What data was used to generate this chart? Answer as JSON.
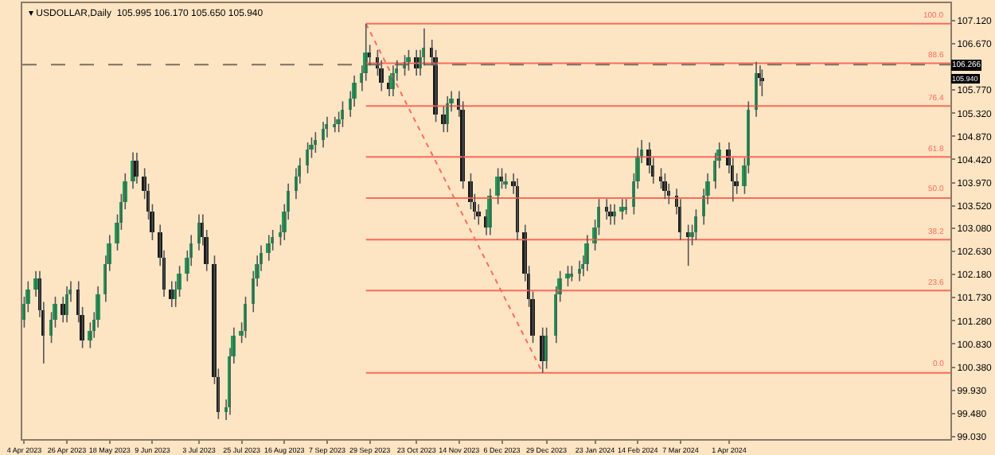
{
  "chart_data": {
    "type": "candlestick",
    "title": "▾ USDOLLAR,Daily  105.995 106.170 105.650 105.940",
    "x": [
      "2023-04-04",
      "2023-04-06",
      "2023-04-10",
      "2023-04-12",
      "2023-04-14",
      "2023-04-18",
      "2023-04-20",
      "2023-04-24",
      "2023-04-26",
      "2023-04-28",
      "2023-05-02",
      "2023-05-04",
      "2023-05-08",
      "2023-05-10",
      "2023-05-12",
      "2023-05-16",
      "2023-05-18",
      "2023-05-22",
      "2023-05-24",
      "2023-05-26",
      "2023-05-30",
      "2023-06-01",
      "2023-06-05",
      "2023-06-07",
      "2023-06-09",
      "2023-06-13",
      "2023-06-15",
      "2023-06-19",
      "2023-06-21",
      "2023-06-23",
      "2023-06-27",
      "2023-06-29",
      "2023-07-03",
      "2023-07-05",
      "2023-07-07",
      "2023-07-11",
      "2023-07-13",
      "2023-07-17",
      "2023-07-19",
      "2023-07-21",
      "2023-07-25",
      "2023-07-27",
      "2023-07-31",
      "2023-08-02",
      "2023-08-04",
      "2023-08-08",
      "2023-08-10",
      "2023-08-14",
      "2023-08-16",
      "2023-08-18",
      "2023-08-22",
      "2023-08-24",
      "2023-08-28",
      "2023-08-30",
      "2023-09-01",
      "2023-09-05",
      "2023-09-07",
      "2023-09-11",
      "2023-09-13",
      "2023-09-15",
      "2023-09-19",
      "2023-09-21",
      "2023-09-25",
      "2023-09-27",
      "2023-09-29",
      "2023-10-03",
      "2023-10-05",
      "2023-10-09",
      "2023-10-11",
      "2023-10-13",
      "2023-10-17",
      "2023-10-19",
      "2023-10-23",
      "2023-10-25",
      "2023-10-27",
      "2023-10-31",
      "2023-11-02",
      "2023-11-06",
      "2023-11-08",
      "2023-11-10",
      "2023-11-14",
      "2023-11-16",
      "2023-11-20",
      "2023-11-22",
      "2023-11-24",
      "2023-11-28",
      "2023-11-30",
      "2023-12-04",
      "2023-12-06",
      "2023-12-08",
      "2023-12-12",
      "2023-12-14",
      "2023-12-18",
      "2023-12-20",
      "2023-12-22",
      "2023-12-27",
      "2023-12-29",
      "2024-01-03",
      "2024-01-05",
      "2024-01-09",
      "2024-01-11",
      "2024-01-15",
      "2024-01-17",
      "2024-01-19",
      "2024-01-23",
      "2024-01-25",
      "2024-01-29",
      "2024-01-31",
      "2024-02-02",
      "2024-02-06",
      "2024-02-08",
      "2024-02-12",
      "2024-02-14",
      "2024-02-16",
      "2024-02-20",
      "2024-02-22",
      "2024-02-26",
      "2024-02-28",
      "2024-03-01",
      "2024-03-05",
      "2024-03-07",
      "2024-03-11",
      "2024-03-13",
      "2024-03-15",
      "2024-03-19",
      "2024-03-21",
      "2024-03-25",
      "2024-03-27",
      "2024-04-01",
      "2024-04-03",
      "2024-04-05",
      "2024-04-09",
      "2024-04-11",
      "2024-04-15",
      "2024-04-17",
      "2024-04-18"
    ],
    "ohlc": [
      [
        101.3,
        101.75,
        101.15,
        101.6
      ],
      [
        101.6,
        102.05,
        101.45,
        101.9
      ],
      [
        101.9,
        102.25,
        101.75,
        102.1
      ],
      [
        102.1,
        102.25,
        101.35,
        101.5
      ],
      [
        101.5,
        101.65,
        100.45,
        101.0
      ],
      [
        101.0,
        101.45,
        100.85,
        101.3
      ],
      [
        101.3,
        101.75,
        101.15,
        101.6
      ],
      [
        101.6,
        101.75,
        101.25,
        101.4
      ],
      [
        101.4,
        101.95,
        101.25,
        101.8
      ],
      [
        101.8,
        102.05,
        101.65,
        101.9
      ],
      [
        101.9,
        102.05,
        101.25,
        101.4
      ],
      [
        101.4,
        101.55,
        100.75,
        100.9
      ],
      [
        100.9,
        101.25,
        100.75,
        101.1
      ],
      [
        101.1,
        101.45,
        100.95,
        101.3
      ],
      [
        101.3,
        101.95,
        101.15,
        101.8
      ],
      [
        101.8,
        102.55,
        101.65,
        102.4
      ],
      [
        102.4,
        102.95,
        102.25,
        102.8
      ],
      [
        102.8,
        103.35,
        102.65,
        103.2
      ],
      [
        103.2,
        103.75,
        103.05,
        103.6
      ],
      [
        103.6,
        104.15,
        103.45,
        104.0
      ],
      [
        104.0,
        104.56,
        103.85,
        104.4
      ],
      [
        104.4,
        104.55,
        103.95,
        104.1
      ],
      [
        104.1,
        104.25,
        103.65,
        103.8
      ],
      [
        103.8,
        103.95,
        103.25,
        103.4
      ],
      [
        103.4,
        103.55,
        102.85,
        103.0
      ],
      [
        103.0,
        103.15,
        102.35,
        102.5
      ],
      [
        102.5,
        102.65,
        101.75,
        101.9
      ],
      [
        101.9,
        102.05,
        101.55,
        101.7
      ],
      [
        101.7,
        102.05,
        101.55,
        101.9
      ],
      [
        101.9,
        102.35,
        101.75,
        102.2
      ],
      [
        102.2,
        102.65,
        102.05,
        102.5
      ],
      [
        102.5,
        102.95,
        102.35,
        102.8
      ],
      [
        102.8,
        103.35,
        102.65,
        103.2
      ],
      [
        103.2,
        103.35,
        102.75,
        102.9
      ],
      [
        102.9,
        103.05,
        102.25,
        102.4
      ],
      [
        102.4,
        102.55,
        100.05,
        100.2
      ],
      [
        100.2,
        100.35,
        99.37,
        99.5
      ],
      [
        99.5,
        99.75,
        99.35,
        99.6
      ],
      [
        99.6,
        100.75,
        99.45,
        100.6
      ],
      [
        100.6,
        101.15,
        100.45,
        101.0
      ],
      [
        101.0,
        101.25,
        100.85,
        101.1
      ],
      [
        101.1,
        101.75,
        100.95,
        101.6
      ],
      [
        101.6,
        102.25,
        101.45,
        102.1
      ],
      [
        102.1,
        102.55,
        101.95,
        102.4
      ],
      [
        102.4,
        102.75,
        102.25,
        102.6
      ],
      [
        102.6,
        102.95,
        102.45,
        102.8
      ],
      [
        102.8,
        103.05,
        102.65,
        102.9
      ],
      [
        102.9,
        103.15,
        102.75,
        103.0
      ],
      [
        103.0,
        103.55,
        102.85,
        103.4
      ],
      [
        103.4,
        103.95,
        103.25,
        103.8
      ],
      [
        103.8,
        104.25,
        103.65,
        104.1
      ],
      [
        104.1,
        104.45,
        103.95,
        104.3
      ],
      [
        104.3,
        104.75,
        104.15,
        104.6
      ],
      [
        104.6,
        104.85,
        104.45,
        104.7
      ],
      [
        104.7,
        104.95,
        104.55,
        104.8
      ],
      [
        104.8,
        105.15,
        104.65,
        105.0
      ],
      [
        105.0,
        105.25,
        104.85,
        105.1
      ],
      [
        105.05,
        105.25,
        104.95,
        105.1
      ],
      [
        105.1,
        105.35,
        104.95,
        105.2
      ],
      [
        105.2,
        105.55,
        105.05,
        105.4
      ],
      [
        105.4,
        105.75,
        105.25,
        105.6
      ],
      [
        105.6,
        106.05,
        105.45,
        105.9
      ],
      [
        105.9,
        106.25,
        105.75,
        106.1
      ],
      [
        106.1,
        107.06,
        105.95,
        106.5
      ],
      [
        106.5,
        106.65,
        106.25,
        106.4
      ],
      [
        106.4,
        106.55,
        106.05,
        106.2
      ],
      [
        106.2,
        106.35,
        105.75,
        105.9
      ],
      [
        105.9,
        106.05,
        105.65,
        105.8
      ],
      [
        105.8,
        106.25,
        105.65,
        106.1
      ],
      [
        106.1,
        106.35,
        105.95,
        106.2
      ],
      [
        106.2,
        106.45,
        106.05,
        106.3
      ],
      [
        106.3,
        106.55,
        106.15,
        106.4
      ],
      [
        106.4,
        106.55,
        106.05,
        106.2
      ],
      [
        106.2,
        106.55,
        106.05,
        106.4
      ],
      [
        106.4,
        106.97,
        106.25,
        106.6
      ],
      [
        106.6,
        106.75,
        106.25,
        106.4
      ],
      [
        106.4,
        106.55,
        105.15,
        105.3
      ],
      [
        105.3,
        105.45,
        104.95,
        105.1
      ],
      [
        105.1,
        105.65,
        104.95,
        105.5
      ],
      [
        105.5,
        105.75,
        105.35,
        105.6
      ],
      [
        105.6,
        105.75,
        105.25,
        105.4
      ],
      [
        105.4,
        105.55,
        103.85,
        104.0
      ],
      [
        104.0,
        104.15,
        103.45,
        103.6
      ],
      [
        103.6,
        103.75,
        103.25,
        103.4
      ],
      [
        103.4,
        103.55,
        103.15,
        103.3
      ],
      [
        103.3,
        103.45,
        102.95,
        103.1
      ],
      [
        103.1,
        103.85,
        102.95,
        103.7
      ],
      [
        103.7,
        104.25,
        103.55,
        104.1
      ],
      [
        104.1,
        104.25,
        103.85,
        104.0
      ],
      [
        103.95,
        104.15,
        103.85,
        104.0
      ],
      [
        104.0,
        104.15,
        103.75,
        103.9
      ],
      [
        103.9,
        104.05,
        102.85,
        103.0
      ],
      [
        103.0,
        103.15,
        102.05,
        102.2
      ],
      [
        102.2,
        102.35,
        101.55,
        101.7
      ],
      [
        101.7,
        101.85,
        100.85,
        101.0
      ],
      [
        101.0,
        101.15,
        100.27,
        100.5
      ],
      [
        100.5,
        101.15,
        100.35,
        101.0
      ],
      [
        101.0,
        101.95,
        100.85,
        101.8
      ],
      [
        101.8,
        102.25,
        101.65,
        102.1
      ],
      [
        102.1,
        102.35,
        101.95,
        102.2
      ],
      [
        102.15,
        102.35,
        102.05,
        102.2
      ],
      [
        102.2,
        102.45,
        102.05,
        102.3
      ],
      [
        102.3,
        102.55,
        102.15,
        102.4
      ],
      [
        102.4,
        102.95,
        102.25,
        102.8
      ],
      [
        102.8,
        103.25,
        102.65,
        103.1
      ],
      [
        103.1,
        103.65,
        102.95,
        103.5
      ],
      [
        103.5,
        103.65,
        103.25,
        103.4
      ],
      [
        103.4,
        103.55,
        103.15,
        103.3
      ],
      [
        103.3,
        103.55,
        103.15,
        103.4
      ],
      [
        103.4,
        103.65,
        103.25,
        103.5
      ],
      [
        103.45,
        103.65,
        103.35,
        103.5
      ],
      [
        103.5,
        104.15,
        103.35,
        104.0
      ],
      [
        104.0,
        104.65,
        103.85,
        104.5
      ],
      [
        104.5,
        104.8,
        104.35,
        104.6
      ],
      [
        104.6,
        104.75,
        104.15,
        104.3
      ],
      [
        104.3,
        104.45,
        103.95,
        104.1
      ],
      [
        104.1,
        104.25,
        103.85,
        104.0
      ],
      [
        104.0,
        104.15,
        103.65,
        103.8
      ],
      [
        103.8,
        103.95,
        103.55,
        103.7
      ],
      [
        103.7,
        103.85,
        103.35,
        103.5
      ],
      [
        103.5,
        103.65,
        102.85,
        103.0
      ],
      [
        103.0,
        103.15,
        102.35,
        102.9
      ],
      [
        102.9,
        103.15,
        102.75,
        103.0
      ],
      [
        103.0,
        103.45,
        102.85,
        103.3
      ],
      [
        103.3,
        103.85,
        103.15,
        103.7
      ],
      [
        103.7,
        104.15,
        103.55,
        104.0
      ],
      [
        104.0,
        104.55,
        103.85,
        104.4
      ],
      [
        104.4,
        104.75,
        104.25,
        104.6
      ],
      [
        104.6,
        104.75,
        104.15,
        104.3
      ],
      [
        104.3,
        104.45,
        103.6,
        104.0
      ],
      [
        104.0,
        104.15,
        103.75,
        103.9
      ],
      [
        103.9,
        104.45,
        103.75,
        104.3
      ],
      [
        104.3,
        105.55,
        104.15,
        105.4
      ],
      [
        105.4,
        106.32,
        105.25,
        106.1
      ],
      [
        106.1,
        106.25,
        105.85,
        106.0
      ],
      [
        105.995,
        106.17,
        105.65,
        105.94
      ]
    ],
    "colors": [
      "#1f9d55",
      "#1f9d55",
      "#1f9d55",
      "#1a1a1a",
      "#1a1a1a",
      "#1f9d55",
      "#1f9d55",
      "#1a1a1a",
      "#1f9d55",
      "#1f9d55",
      "#1a1a1a",
      "#1a1a1a",
      "#1f9d55",
      "#1f9d55",
      "#1f9d55",
      "#1f9d55",
      "#1f9d55",
      "#1f9d55",
      "#1f9d55",
      "#1f9d55",
      "#1f9d55",
      "#1a1a1a",
      "#1a1a1a",
      "#1a1a1a",
      "#1a1a1a",
      "#1a1a1a",
      "#1a1a1a",
      "#1a1a1a",
      "#1f9d55",
      "#1f9d55",
      "#1f9d55",
      "#1f9d55",
      "#1f9d55",
      "#1a1a1a",
      "#1a1a1a",
      "#1a1a1a",
      "#1a1a1a",
      "#1f9d55",
      "#1f9d55",
      "#1f9d55",
      "#1f9d55",
      "#1f9d55",
      "#1f9d55",
      "#1f9d55",
      "#1f9d55",
      "#1f9d55",
      "#1f9d55",
      "#1f9d55",
      "#1f9d55",
      "#1f9d55",
      "#1f9d55",
      "#1f9d55",
      "#1f9d55",
      "#1f9d55",
      "#1f9d55",
      "#1f9d55",
      "#1f9d55",
      "#1f9d55",
      "#1f9d55",
      "#1f9d55",
      "#1f9d55",
      "#1f9d55",
      "#1f9d55",
      "#1f9d55",
      "#1a1a1a",
      "#1a1a1a",
      "#1a1a1a",
      "#1a1a1a",
      "#1f9d55",
      "#1f9d55",
      "#1f9d55",
      "#1f9d55",
      "#1a1a1a",
      "#1f9d55",
      "#1f9d55",
      "#1a1a1a",
      "#1a1a1a",
      "#1a1a1a",
      "#1f9d55",
      "#1f9d55",
      "#1a1a1a",
      "#1a1a1a",
      "#1a1a1a",
      "#1a1a1a",
      "#1a1a1a",
      "#1a1a1a",
      "#1f9d55",
      "#1f9d55",
      "#1a1a1a",
      "#1f9d55",
      "#1a1a1a",
      "#1a1a1a",
      "#1a1a1a",
      "#1a1a1a",
      "#1a1a1a",
      "#1a1a1a",
      "#1f9d55",
      "#1f9d55",
      "#1f9d55",
      "#1f9d55",
      "#1f9d55",
      "#1f9d55",
      "#1f9d55",
      "#1f9d55",
      "#1f9d55",
      "#1f9d55",
      "#1a1a1a",
      "#1a1a1a",
      "#1f9d55",
      "#1f9d55",
      "#1f9d55",
      "#1f9d55",
      "#1f9d55",
      "#1f9d55",
      "#1a1a1a",
      "#1a1a1a",
      "#1a1a1a",
      "#1a1a1a",
      "#1a1a1a",
      "#1a1a1a",
      "#1a1a1a",
      "#1a1a1a",
      "#1f9d55",
      "#1f9d55",
      "#1f9d55",
      "#1f9d55",
      "#1f9d55",
      "#1f9d55",
      "#1a1a1a",
      "#1a1a1a",
      "#1a1a1a",
      "#1f9d55",
      "#1f9d55",
      "#1f9d55",
      "#1a1a1a",
      "#1a1a1a"
    ],
    "series": [
      {
        "type": "line",
        "x": [
          "2023-09-27",
          "2023-12-27"
        ],
        "values": [
          107.06,
          100.27
        ],
        "color": "#ff6a5a",
        "line_style": "dotted"
      }
    ],
    "ref_lines": [
      {
        "axis": "y",
        "value": 107.06,
        "color": "#ff6a5a"
      },
      {
        "axis": "y",
        "value": 106.29,
        "color": "#ff6a5a"
      },
      {
        "axis": "y",
        "value": 105.46,
        "color": "#ff6a5a"
      },
      {
        "axis": "y",
        "value": 104.47,
        "color": "#ff6a5a"
      },
      {
        "axis": "y",
        "value": 103.67,
        "color": "#ff6a5a"
      },
      {
        "axis": "y",
        "value": 102.86,
        "color": "#ff6a5a"
      },
      {
        "axis": "y",
        "value": 101.87,
        "color": "#ff6a5a"
      },
      {
        "axis": "y",
        "value": 100.27,
        "color": "#ff6a5a"
      },
      {
        "axis": "y",
        "value": 106.266,
        "label": "106.266",
        "color": "#7a7060",
        "line_style": "dashed"
      }
    ],
    "annotations": [
      {
        "text": "105.940",
        "y": 105.94
      },
      {
        "text": "100.0",
        "x": "2024-07-22",
        "y": 107.06
      },
      {
        "text": "88.6",
        "x": "2024-07-22",
        "y": 106.29
      },
      {
        "text": "76.4",
        "x": "2024-07-22",
        "y": 105.46
      },
      {
        "text": "61.8",
        "x": "2024-07-22",
        "y": 104.47
      },
      {
        "text": "50.0",
        "x": "2024-07-22",
        "y": 103.67
      },
      {
        "text": "38.2",
        "x": "2024-07-22",
        "y": 102.86
      },
      {
        "text": "23.6",
        "x": "2024-07-22",
        "y": 101.87
      },
      {
        "text": "0.0",
        "x": "2024-07-22",
        "y": 100.27
      }
    ],
    "xlim": [
      "2023-04-03",
      "2024-07-24"
    ],
    "xticks": [
      {
        "value": "2023-04-04",
        "label": "4 Apr 2023"
      },
      {
        "value": "2023-04-26",
        "label": "26 Apr 2023"
      },
      {
        "value": "2023-05-18",
        "label": "18 May 2023"
      },
      {
        "value": "2023-06-09",
        "label": "9 Jun 2023"
      },
      {
        "value": "2023-07-03",
        "label": "3 Jul 2023"
      },
      {
        "value": "2023-07-25",
        "label": "25 Jul 2023"
      },
      {
        "value": "2023-08-16",
        "label": "16 Aug 2023"
      },
      {
        "value": "2023-09-07",
        "label": "7 Sep 2023"
      },
      {
        "value": "2023-09-29",
        "label": "29 Sep 2023"
      },
      {
        "value": "2023-10-23",
        "label": "23 Oct 2023"
      },
      {
        "value": "2023-11-14",
        "label": "14 Nov 2023"
      },
      {
        "value": "2023-12-06",
        "label": "6 Dec 2023"
      },
      {
        "value": "2023-12-29",
        "label": "29 Dec 2023"
      },
      {
        "value": "2024-01-23",
        "label": "23 Jan 2024"
      },
      {
        "value": "2024-02-14",
        "label": "14 Feb 2024"
      },
      {
        "value": "2024-03-07",
        "label": "7 Mar 2024"
      },
      {
        "value": "2024-04-01",
        "label": "1 Apr 2024"
      }
    ],
    "ylim": [
      98.98,
      107.46
    ],
    "yticks": [
      {
        "value": 107.12,
        "label": "107.120"
      },
      {
        "value": 106.67,
        "label": "106.670"
      },
      {
        "value": 105.77,
        "label": "105.770"
      },
      {
        "value": 105.32,
        "label": "105.320"
      },
      {
        "value": 104.87,
        "label": "104.870"
      },
      {
        "value": 104.42,
        "label": "104.420"
      },
      {
        "value": 103.97,
        "label": "103.970"
      },
      {
        "value": 103.52,
        "label": "103.520"
      },
      {
        "value": 103.08,
        "label": "103.080"
      },
      {
        "value": 102.63,
        "label": "102.630"
      },
      {
        "value": 102.18,
        "label": "102.180"
      },
      {
        "value": 101.73,
        "label": "101.730"
      },
      {
        "value": 101.28,
        "label": "101.280"
      },
      {
        "value": 100.83,
        "label": "100.830"
      },
      {
        "value": 100.38,
        "label": "100.380"
      },
      {
        "value": 99.93,
        "label": "99.930"
      },
      {
        "value": 99.48,
        "label": "99.480"
      },
      {
        "value": 99.03,
        "label": "99.030"
      }
    ],
    "grid": false
  }
}
